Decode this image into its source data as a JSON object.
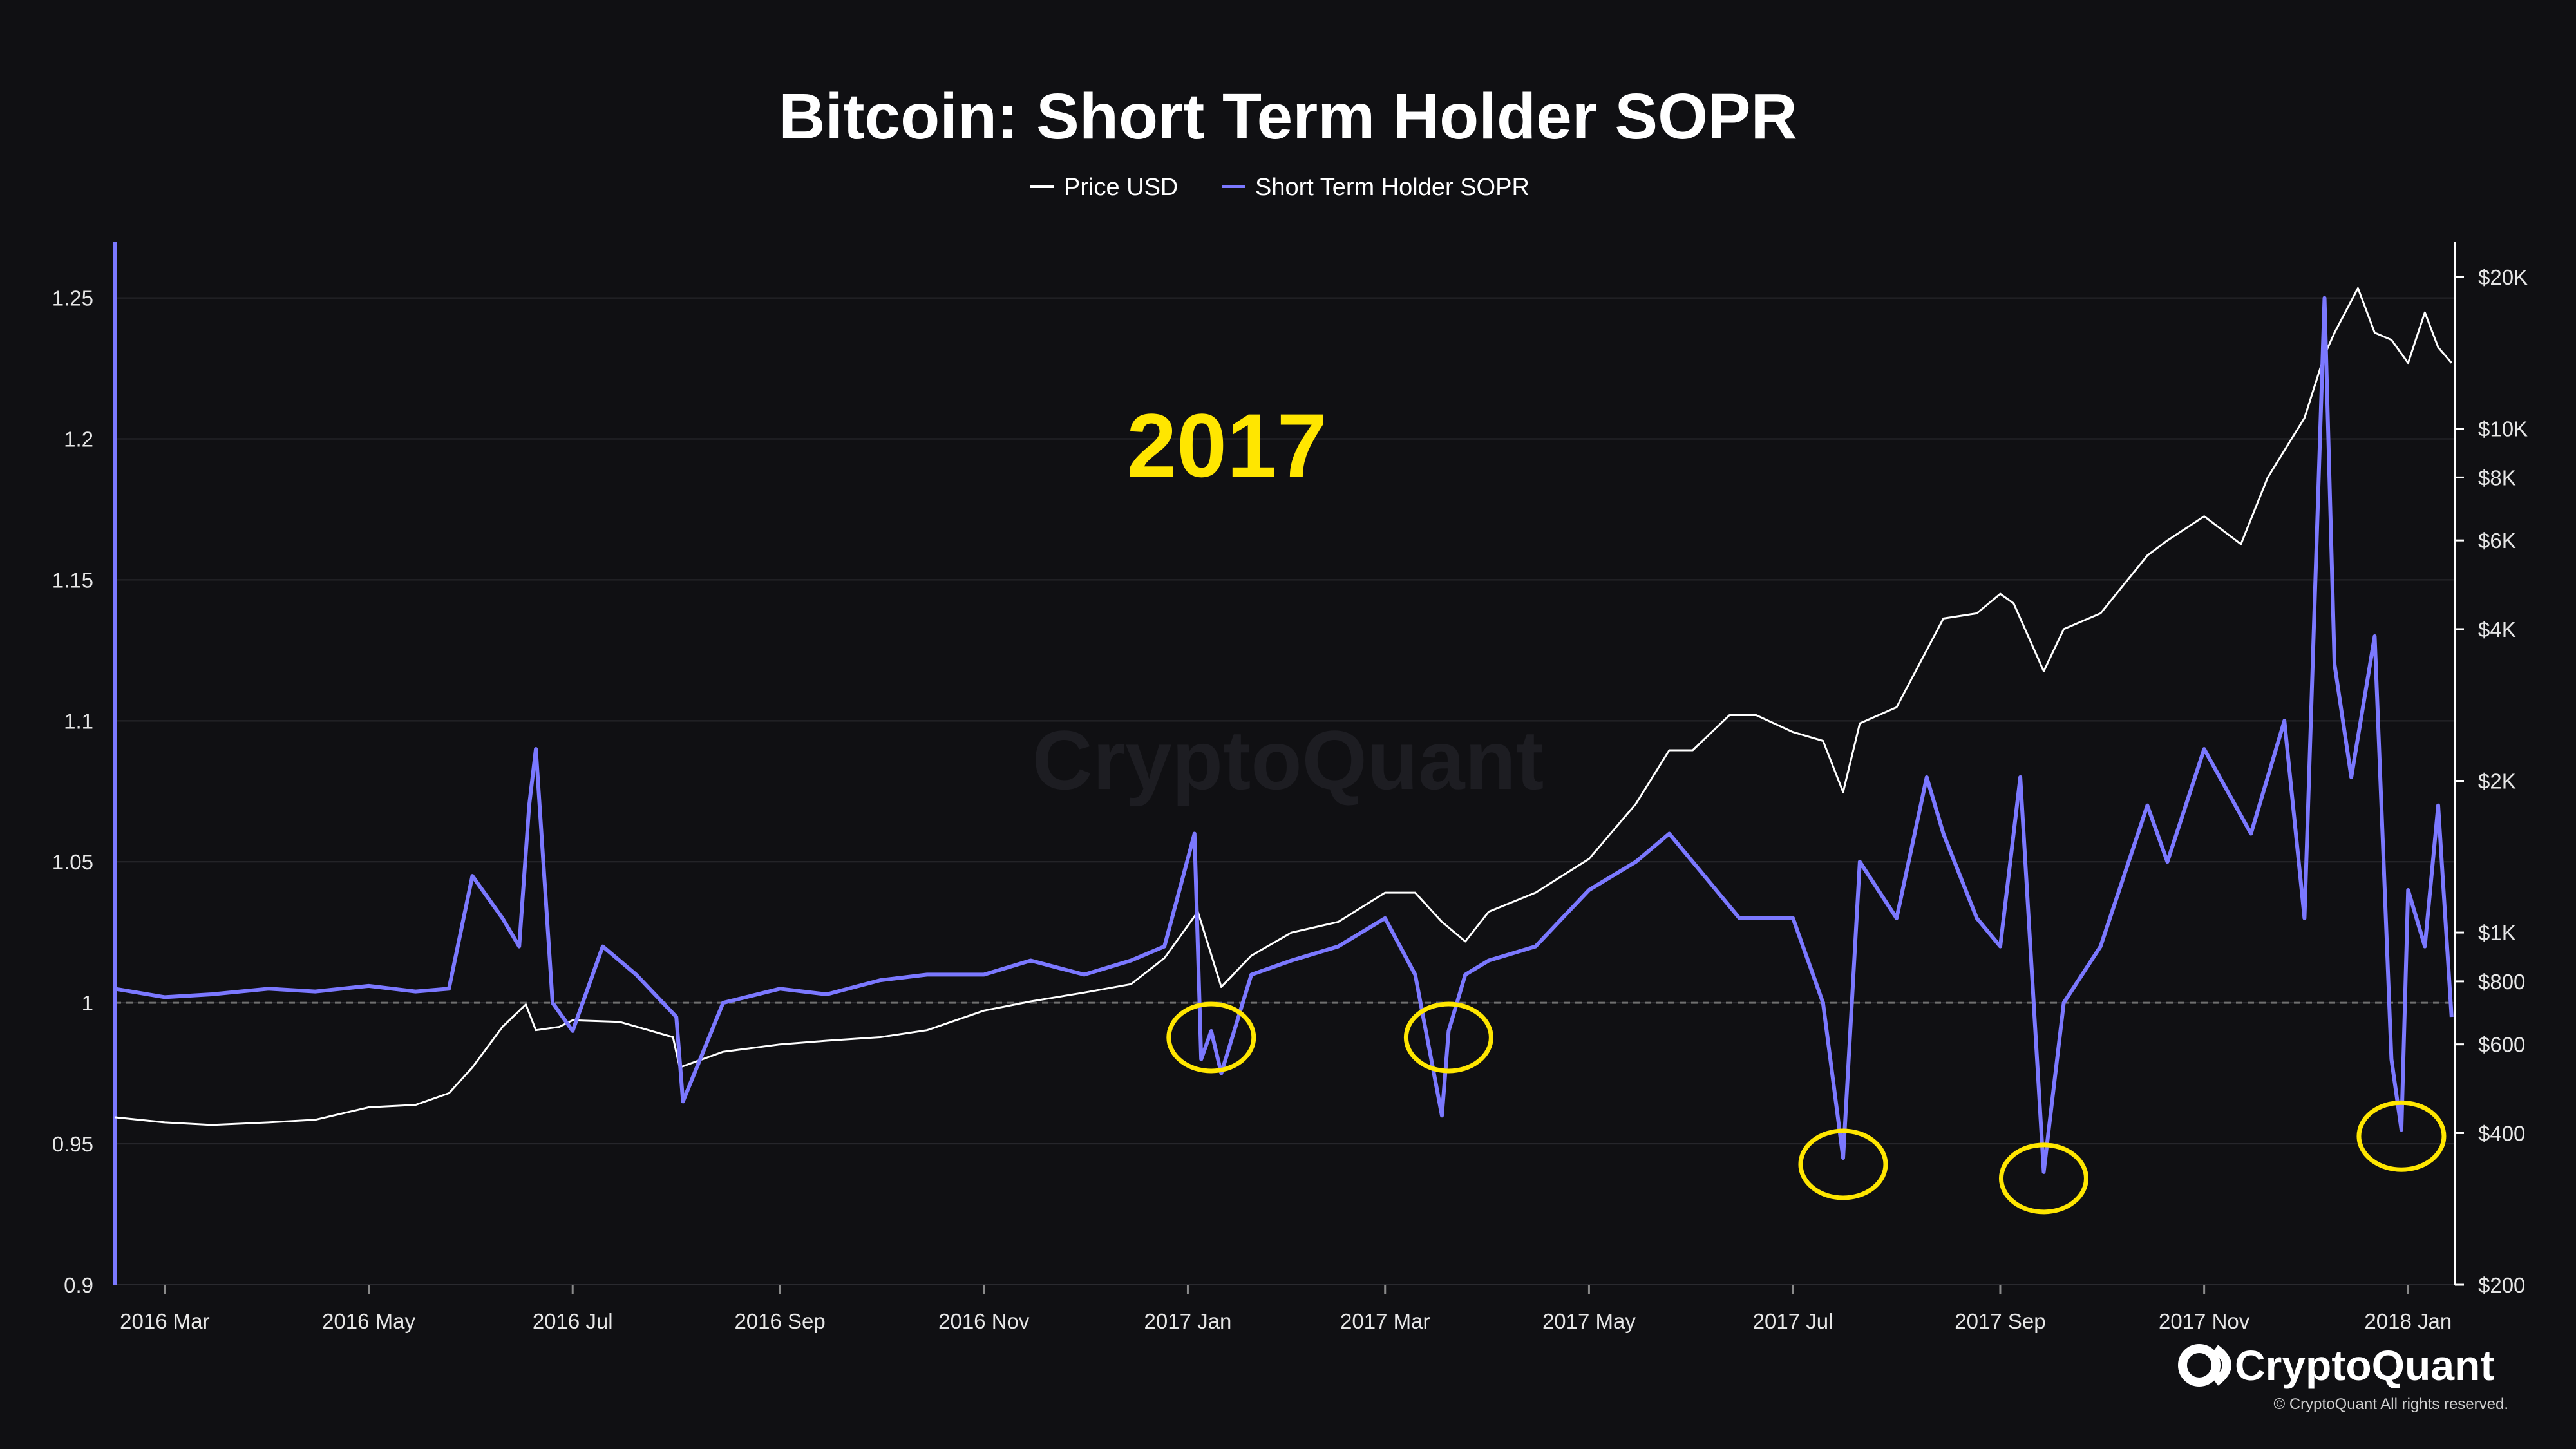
{
  "chart_data": {
    "type": "line",
    "title": "Bitcoin: Short Term Holder SOPR",
    "legend": [
      "Price USD",
      "Short Term Holder SOPR"
    ],
    "legend_placement": "top-center",
    "annotation": "2017",
    "watermark": "CryptoQuant",
    "brand": "CryptoQuant",
    "copyright": "© CryptoQuant All rights reserved.",
    "colors": {
      "background": "#101013",
      "price": "#ffffff",
      "sopr": "#7b78ff",
      "annotation": "#ffe600",
      "circle": "#ffe600",
      "grid": "#2a2a2f",
      "reference": "#707070"
    },
    "grid": true,
    "x_range": [
      "2016-02-15",
      "2018-01-15"
    ],
    "x_ticks": [
      {
        "label": "2016 Mar",
        "date": "2016-03-01"
      },
      {
        "label": "2016 May",
        "date": "2016-05-01"
      },
      {
        "label": "2016 Jul",
        "date": "2016-07-01"
      },
      {
        "label": "2016 Sep",
        "date": "2016-09-01"
      },
      {
        "label": "2016 Nov",
        "date": "2016-11-01"
      },
      {
        "label": "2017 Jan",
        "date": "2017-01-01"
      },
      {
        "label": "2017 Mar",
        "date": "2017-03-01"
      },
      {
        "label": "2017 May",
        "date": "2017-05-01"
      },
      {
        "label": "2017 Jul",
        "date": "2017-07-01"
      },
      {
        "label": "2017 Sep",
        "date": "2017-09-01"
      },
      {
        "label": "2017 Nov",
        "date": "2017-11-01"
      },
      {
        "label": "2018 Jan",
        "date": "2018-01-01"
      }
    ],
    "y_left": {
      "range": [
        0.9,
        1.27
      ],
      "ticks": [
        {
          "label": "0.9",
          "value": 0.9
        },
        {
          "label": "0.95",
          "value": 0.95
        },
        {
          "label": "1",
          "value": 1.0
        },
        {
          "label": "1.05",
          "value": 1.05
        },
        {
          "label": "1.1",
          "value": 1.1
        },
        {
          "label": "1.15",
          "value": 1.15
        },
        {
          "label": "1.2",
          "value": 1.2
        },
        {
          "label": "1.25",
          "value": 1.25
        }
      ]
    },
    "y_right": {
      "scale": "log",
      "range": [
        200,
        20000
      ],
      "ticks": [
        {
          "label": "$200",
          "value": 200
        },
        {
          "label": "$400",
          "value": 400
        },
        {
          "label": "$600",
          "value": 600
        },
        {
          "label": "$800",
          "value": 800
        },
        {
          "label": "$1K",
          "value": 1000
        },
        {
          "label": "$2K",
          "value": 2000
        },
        {
          "label": "$4K",
          "value": 4000
        },
        {
          "label": "$6K",
          "value": 6000
        },
        {
          "label": "$8K",
          "value": 8000
        },
        {
          "label": "$10K",
          "value": 10000
        },
        {
          "label": "$20K",
          "value": 20000
        }
      ]
    },
    "reference_line": 1.0,
    "series": [
      {
        "name": "Price USD",
        "axis": "right",
        "x": [
          "2016-02-15",
          "2016-03-01",
          "2016-03-15",
          "2016-04-01",
          "2016-04-15",
          "2016-05-01",
          "2016-05-15",
          "2016-05-25",
          "2016-06-01",
          "2016-06-10",
          "2016-06-17",
          "2016-06-20",
          "2016-06-27",
          "2016-07-01",
          "2016-07-15",
          "2016-07-31",
          "2016-08-02",
          "2016-08-15",
          "2016-09-01",
          "2016-09-15",
          "2016-10-01",
          "2016-10-15",
          "2016-11-01",
          "2016-11-15",
          "2016-12-01",
          "2016-12-15",
          "2016-12-25",
          "2017-01-04",
          "2017-01-11",
          "2017-01-20",
          "2017-02-01",
          "2017-02-15",
          "2017-03-01",
          "2017-03-10",
          "2017-03-18",
          "2017-03-25",
          "2017-04-01",
          "2017-04-15",
          "2017-05-01",
          "2017-05-15",
          "2017-05-25",
          "2017-06-01",
          "2017-06-12",
          "2017-06-20",
          "2017-07-01",
          "2017-07-10",
          "2017-07-16",
          "2017-07-21",
          "2017-08-01",
          "2017-08-15",
          "2017-08-25",
          "2017-09-01",
          "2017-09-05",
          "2017-09-14",
          "2017-09-20",
          "2017-10-01",
          "2017-10-15",
          "2017-10-21",
          "2017-11-01",
          "2017-11-12",
          "2017-11-20",
          "2017-12-01",
          "2017-12-07",
          "2017-12-10",
          "2017-12-17",
          "2017-12-22",
          "2017-12-27",
          "2018-01-01",
          "2018-01-06",
          "2018-01-10",
          "2018-01-14"
        ],
        "values": [
          430,
          420,
          415,
          420,
          425,
          450,
          455,
          480,
          540,
          650,
          720,
          640,
          650,
          670,
          665,
          620,
          540,
          580,
          600,
          610,
          620,
          640,
          700,
          730,
          760,
          790,
          890,
          1100,
          780,
          900,
          1000,
          1050,
          1200,
          1200,
          1050,
          960,
          1100,
          1200,
          1400,
          1800,
          2300,
          2300,
          2700,
          2700,
          2500,
          2400,
          1900,
          2600,
          2800,
          4200,
          4300,
          4700,
          4500,
          3300,
          4000,
          4300,
          5600,
          6000,
          6700,
          5900,
          8000,
          10500,
          14000,
          15500,
          19000,
          15500,
          15000,
          13500,
          17000,
          14500,
          13500
        ]
      },
      {
        "name": "Short Term Holder SOPR",
        "axis": "left",
        "x": [
          "2016-02-15",
          "2016-03-01",
          "2016-03-15",
          "2016-04-01",
          "2016-04-15",
          "2016-05-01",
          "2016-05-15",
          "2016-05-25",
          "2016-06-01",
          "2016-06-10",
          "2016-06-15",
          "2016-06-18",
          "2016-06-20",
          "2016-06-25",
          "2016-07-01",
          "2016-07-10",
          "2016-07-20",
          "2016-08-01",
          "2016-08-03",
          "2016-08-15",
          "2016-09-01",
          "2016-09-15",
          "2016-10-01",
          "2016-10-15",
          "2016-11-01",
          "2016-11-15",
          "2016-12-01",
          "2016-12-15",
          "2016-12-25",
          "2017-01-03",
          "2017-01-05",
          "2017-01-08",
          "2017-01-11",
          "2017-01-20",
          "2017-02-01",
          "2017-02-15",
          "2017-03-01",
          "2017-03-10",
          "2017-03-18",
          "2017-03-20",
          "2017-03-25",
          "2017-04-01",
          "2017-04-15",
          "2017-05-01",
          "2017-05-15",
          "2017-05-25",
          "2017-06-01",
          "2017-06-15",
          "2017-07-01",
          "2017-07-10",
          "2017-07-16",
          "2017-07-21",
          "2017-08-01",
          "2017-08-10",
          "2017-08-15",
          "2017-08-25",
          "2017-09-01",
          "2017-09-07",
          "2017-09-14",
          "2017-09-20",
          "2017-10-01",
          "2017-10-15",
          "2017-10-21",
          "2017-11-01",
          "2017-11-15",
          "2017-11-25",
          "2017-12-01",
          "2017-12-07",
          "2017-12-10",
          "2017-12-15",
          "2017-12-22",
          "2017-12-27",
          "2017-12-30",
          "2018-01-01",
          "2018-01-06",
          "2018-01-10",
          "2018-01-14"
        ],
        "values": [
          1.005,
          1.002,
          1.003,
          1.005,
          1.004,
          1.006,
          1.004,
          1.005,
          1.045,
          1.03,
          1.02,
          1.07,
          1.09,
          1.0,
          0.99,
          1.02,
          1.01,
          0.995,
          0.965,
          1.0,
          1.005,
          1.003,
          1.008,
          1.01,
          1.01,
          1.015,
          1.01,
          1.015,
          1.02,
          1.06,
          0.98,
          0.99,
          0.975,
          1.01,
          1.015,
          1.02,
          1.03,
          1.01,
          0.96,
          0.99,
          1.01,
          1.015,
          1.02,
          1.04,
          1.05,
          1.06,
          1.05,
          1.03,
          1.03,
          1.0,
          0.945,
          1.05,
          1.03,
          1.08,
          1.06,
          1.03,
          1.02,
          1.08,
          0.94,
          1.0,
          1.02,
          1.07,
          1.05,
          1.09,
          1.06,
          1.1,
          1.03,
          1.25,
          1.12,
          1.08,
          1.13,
          0.98,
          0.955,
          1.04,
          1.02,
          1.07,
          0.995
        ]
      }
    ],
    "highlighted_dips": [
      "2017-01-08",
      "2017-03-20",
      "2017-07-16",
      "2017-09-14",
      "2017-12-30"
    ]
  }
}
